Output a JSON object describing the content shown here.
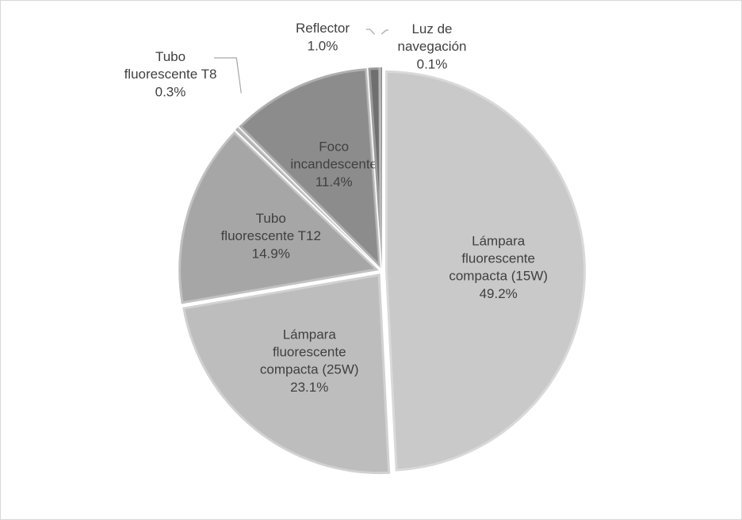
{
  "chart_data": {
    "type": "pie",
    "categories": [
      "Lámpara fluorescente compacta (15W)",
      "Lámpara fluorescente compacta (25W)",
      "Tubo fluorescente T12",
      "Tubo fluorescente T8",
      "Foco incandescente",
      "Reflector",
      "Luz de navegación"
    ],
    "values": [
      49.2,
      23.1,
      14.9,
      0.3,
      11.4,
      1.0,
      0.1
    ],
    "value_labels": [
      "49.2%",
      "23.1%",
      "14.9%",
      "0.3%",
      "11.4%",
      "1.0%",
      "0.1%"
    ],
    "colors": [
      "#c9c9c9",
      "#bdbdbd",
      "#a6a6a6",
      "#8f8f8f",
      "#8c8c8c",
      "#6f6f6f",
      "#575757"
    ]
  }
}
